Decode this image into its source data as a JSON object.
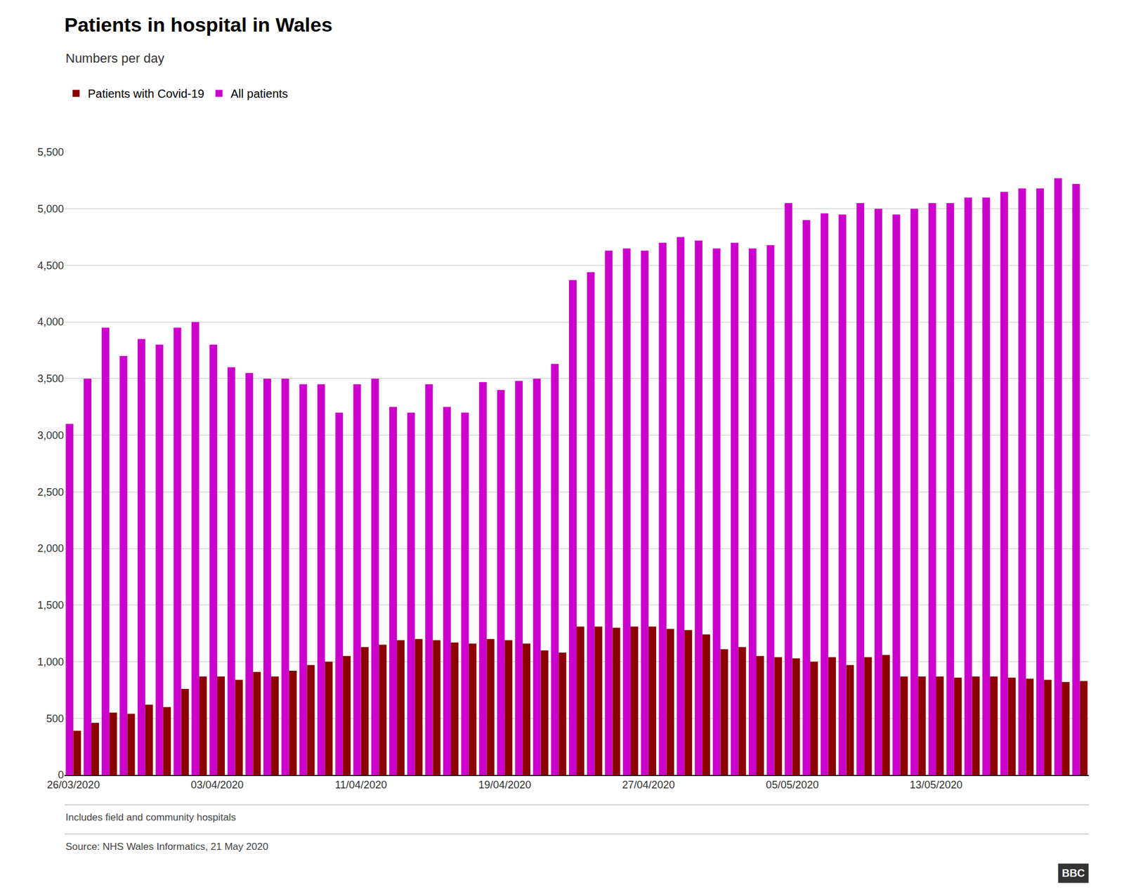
{
  "chart_data": {
    "type": "bar",
    "title": "Patients in hospital in Wales",
    "subtitle": "Numbers per day",
    "annotations": [
      "Includes field and community hospitals",
      "Source: NHS Wales Informatics, 21 May 2020",
      "BBC"
    ],
    "categories": [
      "26/03/2020",
      null,
      null,
      null,
      null,
      null,
      null,
      null,
      "03/04/2020",
      null,
      null,
      null,
      null,
      null,
      null,
      null,
      "11/04/2020",
      null,
      null,
      null,
      null,
      null,
      null,
      null,
      "19/04/2020",
      null,
      null,
      null,
      null,
      null,
      null,
      null,
      "27/04/2020",
      null,
      null,
      null,
      null,
      null,
      null,
      null,
      "05/05/2020",
      null,
      null,
      null,
      null,
      null,
      null,
      null,
      "13/05/2020",
      null,
      null,
      null,
      null,
      null,
      null,
      null,
      null
    ],
    "series": [
      {
        "name": "All patients",
        "color": "#CC00CC",
        "values": [
          3100,
          3500,
          3950,
          3700,
          3850,
          3800,
          3950,
          4000,
          3800,
          3600,
          3550,
          3500,
          3500,
          3450,
          3450,
          3200,
          3450,
          3500,
          3250,
          3200,
          3450,
          3250,
          3200,
          3470,
          3400,
          3480,
          3500,
          3630,
          4370,
          4440,
          4630,
          4650,
          4630,
          4700,
          4750,
          4720,
          4650,
          4700,
          4650,
          4680,
          5050,
          4900,
          4960,
          4950,
          5050,
          5000,
          4950,
          5000,
          5050,
          5050,
          5100,
          5100,
          5150,
          5180,
          5180,
          5270,
          5220
        ]
      },
      {
        "name": "Patients with Covid-19",
        "color": "#8B0000",
        "values": [
          390,
          460,
          550,
          540,
          620,
          600,
          760,
          870,
          870,
          840,
          910,
          870,
          920,
          970,
          1000,
          1050,
          1130,
          1150,
          1190,
          1200,
          1190,
          1170,
          1160,
          1200,
          1190,
          1160,
          1100,
          1080,
          1310,
          1310,
          1300,
          1310,
          1310,
          1290,
          1280,
          1240,
          1110,
          1130,
          1050,
          1040,
          1030,
          1000,
          1040,
          970,
          1040,
          1060,
          870,
          870,
          870,
          860,
          870,
          870,
          860,
          850,
          840,
          820,
          830
        ]
      }
    ],
    "ylim": [
      0,
      5500
    ],
    "yticks": [
      0,
      500,
      {
        "value": 1000,
        "label": "1,000"
      },
      {
        "value": 1500,
        "label": "1,500"
      },
      {
        "value": 2000,
        "label": "2,000"
      },
      {
        "value": 2500,
        "label": "2,500"
      },
      {
        "value": 3000,
        "label": "3,000"
      },
      {
        "value": 3500,
        "label": "3,500"
      },
      {
        "value": 4000,
        "label": "4,000"
      },
      {
        "value": 4500,
        "label": "4,500"
      },
      {
        "value": 5000,
        "label": "5,000"
      },
      {
        "value": 5500,
        "label": "5,500"
      }
    ],
    "grid": true,
    "legend": "upper left"
  }
}
